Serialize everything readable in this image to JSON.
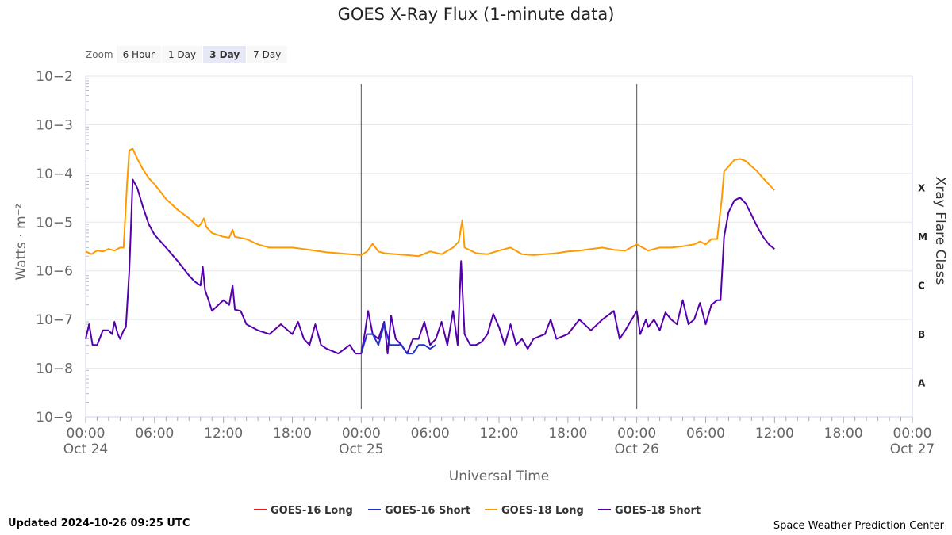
{
  "title": "GOES X-Ray Flux (1-minute data)",
  "zoom": {
    "label": "Zoom",
    "options": [
      "6 Hour",
      "1 Day",
      "3 Day",
      "7 Day"
    ],
    "selected": "3 Day"
  },
  "updated": "Updated 2024-10-26 09:25 UTC",
  "credit": "Space Weather Prediction Center",
  "colors": {
    "goes16_long": "#e41a1c",
    "goes16_short": "#2233cc",
    "goes18_long": "#ff9900",
    "goes18_short": "#5500aa"
  },
  "chart_data": {
    "type": "line",
    "title": "GOES X-Ray Flux (1-minute data)",
    "xlabel": "Universal Time",
    "ylabel": "Watts · m⁻²",
    "y2label": "Xray Flare Class",
    "yscale": "log",
    "ylim": [
      1e-09,
      0.01
    ],
    "xlim_hours": [
      0,
      72
    ],
    "xticks": [
      {
        "h": 0,
        "time": "00:00",
        "date": "Oct 24"
      },
      {
        "h": 6,
        "time": "06:00",
        "date": ""
      },
      {
        "h": 12,
        "time": "12:00",
        "date": ""
      },
      {
        "h": 18,
        "time": "18:00",
        "date": ""
      },
      {
        "h": 24,
        "time": "00:00",
        "date": "Oct 25"
      },
      {
        "h": 30,
        "time": "06:00",
        "date": ""
      },
      {
        "h": 36,
        "time": "12:00",
        "date": ""
      },
      {
        "h": 42,
        "time": "18:00",
        "date": ""
      },
      {
        "h": 48,
        "time": "00:00",
        "date": "Oct 26"
      },
      {
        "h": 54,
        "time": "06:00",
        "date": ""
      },
      {
        "h": 60,
        "time": "12:00",
        "date": ""
      },
      {
        "h": 66,
        "time": "18:00",
        "date": ""
      },
      {
        "h": 72,
        "time": "00:00",
        "date": "Oct 27"
      }
    ],
    "yticks": [
      {
        "exp": -2,
        "label": "10−2"
      },
      {
        "exp": -3,
        "label": "10−3"
      },
      {
        "exp": -4,
        "label": "10−4"
      },
      {
        "exp": -5,
        "label": "10−5"
      },
      {
        "exp": -6,
        "label": "10−6"
      },
      {
        "exp": -7,
        "label": "10−7"
      },
      {
        "exp": -8,
        "label": "10−8"
      },
      {
        "exp": -9,
        "label": "10−9"
      }
    ],
    "flare_classes": [
      {
        "label": "X",
        "exp": -4
      },
      {
        "label": "M",
        "exp": -5
      },
      {
        "label": "C",
        "exp": -6
      },
      {
        "label": "B",
        "exp": -7
      },
      {
        "label": "A",
        "exp": -8
      }
    ],
    "day_lines_hours": [
      24,
      48
    ],
    "legend": [
      "GOES-16 Long",
      "GOES-16 Short",
      "GOES-18 Long",
      "GOES-18 Short"
    ],
    "series": [
      {
        "name": "GOES-18 Long",
        "color": "#ff9900",
        "points": [
          [
            0,
            2.5e-06
          ],
          [
            0.5,
            2.2e-06
          ],
          [
            1,
            2.6e-06
          ],
          [
            1.5,
            2.5e-06
          ],
          [
            2,
            2.8e-06
          ],
          [
            2.5,
            2.6e-06
          ],
          [
            3,
            3e-06
          ],
          [
            3.3,
            3e-06
          ],
          [
            3.6,
            6e-05
          ],
          [
            3.8,
            0.0003
          ],
          [
            4.1,
            0.00032
          ],
          [
            4.5,
            0.0002
          ],
          [
            5,
            0.00012
          ],
          [
            5.5,
            8e-05
          ],
          [
            6,
            6e-05
          ],
          [
            7,
            3e-05
          ],
          [
            8,
            1.8e-05
          ],
          [
            9,
            1.2e-05
          ],
          [
            9.8,
            8e-06
          ],
          [
            10,
            9e-06
          ],
          [
            10.3,
            1.2e-05
          ],
          [
            10.5,
            8e-06
          ],
          [
            11,
            6e-06
          ],
          [
            12,
            5e-06
          ],
          [
            12.5,
            4.8e-06
          ],
          [
            12.8,
            7e-06
          ],
          [
            13,
            5e-06
          ],
          [
            14,
            4.5e-06
          ],
          [
            15,
            3.5e-06
          ],
          [
            16,
            3e-06
          ],
          [
            17,
            3e-06
          ],
          [
            18,
            3e-06
          ],
          [
            19,
            2.8e-06
          ],
          [
            20,
            2.6e-06
          ],
          [
            21,
            2.4e-06
          ],
          [
            22,
            2.3e-06
          ],
          [
            23,
            2.2e-06
          ],
          [
            24,
            2.1e-06
          ],
          [
            24.5,
            2.5e-06
          ],
          [
            25,
            3.6e-06
          ],
          [
            25.5,
            2.5e-06
          ],
          [
            26,
            2.3e-06
          ],
          [
            27,
            2.2e-06
          ],
          [
            28,
            2.1e-06
          ],
          [
            29,
            2e-06
          ],
          [
            30,
            2.5e-06
          ],
          [
            31,
            2.2e-06
          ],
          [
            32,
            3e-06
          ],
          [
            32.5,
            4e-06
          ],
          [
            32.8,
            1.1e-05
          ],
          [
            33,
            3e-06
          ],
          [
            34,
            2.3e-06
          ],
          [
            35,
            2.2e-06
          ],
          [
            36,
            2.6e-06
          ],
          [
            37,
            3e-06
          ],
          [
            38,
            2.2e-06
          ],
          [
            39,
            2.1e-06
          ],
          [
            40,
            2.2e-06
          ],
          [
            41,
            2.3e-06
          ],
          [
            42,
            2.5e-06
          ],
          [
            43,
            2.6e-06
          ],
          [
            44,
            2.8e-06
          ],
          [
            45,
            3e-06
          ],
          [
            46,
            2.7e-06
          ],
          [
            47,
            2.6e-06
          ],
          [
            48,
            3.5e-06
          ],
          [
            49,
            2.6e-06
          ],
          [
            50,
            3e-06
          ],
          [
            51,
            3e-06
          ],
          [
            52,
            3.2e-06
          ],
          [
            53,
            3.5e-06
          ],
          [
            53.5,
            4e-06
          ],
          [
            54,
            3.5e-06
          ],
          [
            54.5,
            4.5e-06
          ],
          [
            55,
            4.5e-06
          ],
          [
            55.4,
            3e-05
          ],
          [
            55.6,
            0.00011
          ],
          [
            56,
            0.00014
          ],
          [
            56.5,
            0.00019
          ],
          [
            57,
            0.0002
          ],
          [
            57.5,
            0.00018
          ],
          [
            58,
            0.00014
          ],
          [
            58.5,
            0.00011
          ],
          [
            59,
            8e-05
          ],
          [
            59.5,
            6e-05
          ],
          [
            60,
            4.5e-05
          ]
        ]
      },
      {
        "name": "GOES-18 Short",
        "color": "#5500aa",
        "points": [
          [
            0,
            4e-08
          ],
          [
            0.3,
            8e-08
          ],
          [
            0.6,
            3e-08
          ],
          [
            1,
            3e-08
          ],
          [
            1.5,
            6e-08
          ],
          [
            2,
            6e-08
          ],
          [
            2.3,
            5e-08
          ],
          [
            2.5,
            9e-08
          ],
          [
            2.8,
            5e-08
          ],
          [
            3,
            4e-08
          ],
          [
            3.3,
            6e-08
          ],
          [
            3.5,
            7e-08
          ],
          [
            3.8,
            1e-06
          ],
          [
            4.1,
            7.5e-05
          ],
          [
            4.5,
            5e-05
          ],
          [
            5,
            2e-05
          ],
          [
            5.5,
            9e-06
          ],
          [
            6,
            5.5e-06
          ],
          [
            7,
            3e-06
          ],
          [
            8,
            1.6e-06
          ],
          [
            9,
            8e-07
          ],
          [
            9.5,
            6e-07
          ],
          [
            10,
            5e-07
          ],
          [
            10.2,
            1.2e-06
          ],
          [
            10.4,
            4e-07
          ],
          [
            10.7,
            2.5e-07
          ],
          [
            11,
            1.5e-07
          ],
          [
            12,
            2.5e-07
          ],
          [
            12.5,
            2e-07
          ],
          [
            12.8,
            5e-07
          ],
          [
            13,
            1.6e-07
          ],
          [
            13.5,
            1.5e-07
          ],
          [
            14,
            8e-08
          ],
          [
            15,
            6e-08
          ],
          [
            16,
            5e-08
          ],
          [
            17,
            8e-08
          ],
          [
            18,
            5e-08
          ],
          [
            18.5,
            9e-08
          ],
          [
            19,
            4e-08
          ],
          [
            19.5,
            3e-08
          ],
          [
            20,
            8e-08
          ],
          [
            20.5,
            3e-08
          ],
          [
            21,
            2.5e-08
          ],
          [
            22,
            2e-08
          ],
          [
            23,
            3e-08
          ],
          [
            23.5,
            2e-08
          ],
          [
            24,
            2e-08
          ],
          [
            24.3,
            5e-08
          ],
          [
            24.6,
            1.5e-07
          ],
          [
            25,
            5e-08
          ],
          [
            25.5,
            4e-08
          ],
          [
            26,
            9e-08
          ],
          [
            26.3,
            2e-08
          ],
          [
            26.6,
            1.2e-07
          ],
          [
            27,
            4e-08
          ],
          [
            27.5,
            3e-08
          ],
          [
            28,
            2e-08
          ],
          [
            28.5,
            4e-08
          ],
          [
            29,
            4e-08
          ],
          [
            29.5,
            9e-08
          ],
          [
            30,
            3e-08
          ],
          [
            30.5,
            4e-08
          ],
          [
            31,
            9e-08
          ],
          [
            31.5,
            3e-08
          ],
          [
            32,
            1.5e-07
          ],
          [
            32.4,
            3e-08
          ],
          [
            32.7,
            1.6e-06
          ],
          [
            33,
            5e-08
          ],
          [
            33.5,
            3e-08
          ],
          [
            34,
            3e-08
          ],
          [
            34.5,
            3.5e-08
          ],
          [
            35,
            5e-08
          ],
          [
            35.5,
            1.3e-07
          ],
          [
            36,
            7e-08
          ],
          [
            36.5,
            3e-08
          ],
          [
            37,
            8e-08
          ],
          [
            37.5,
            3e-08
          ],
          [
            38,
            4e-08
          ],
          [
            38.5,
            2.5e-08
          ],
          [
            39,
            4e-08
          ],
          [
            40,
            5e-08
          ],
          [
            40.5,
            1e-07
          ],
          [
            41,
            4e-08
          ],
          [
            42,
            5e-08
          ],
          [
            43,
            1e-07
          ],
          [
            44,
            6e-08
          ],
          [
            45,
            1e-07
          ],
          [
            46,
            1.5e-07
          ],
          [
            46.5,
            4e-08
          ],
          [
            47,
            6e-08
          ],
          [
            48,
            1.5e-07
          ],
          [
            48.3,
            5e-08
          ],
          [
            48.8,
            1e-07
          ],
          [
            49,
            7e-08
          ],
          [
            49.5,
            1e-07
          ],
          [
            50,
            6e-08
          ],
          [
            50.5,
            1.4e-07
          ],
          [
            51,
            1e-07
          ],
          [
            51.5,
            8e-08
          ],
          [
            52,
            2.5e-07
          ],
          [
            52.5,
            8e-08
          ],
          [
            53,
            1e-07
          ],
          [
            53.5,
            2.2e-07
          ],
          [
            54,
            8e-08
          ],
          [
            54.5,
            2e-07
          ],
          [
            55,
            2.5e-07
          ],
          [
            55.3,
            2.5e-07
          ],
          [
            55.6,
            5e-06
          ],
          [
            56,
            1.6e-05
          ],
          [
            56.5,
            2.8e-05
          ],
          [
            57,
            3.2e-05
          ],
          [
            57.5,
            2.4e-05
          ],
          [
            58,
            1.4e-05
          ],
          [
            58.5,
            8e-06
          ],
          [
            59,
            5e-06
          ],
          [
            59.5,
            3.5e-06
          ],
          [
            60,
            2.8e-06
          ]
        ]
      },
      {
        "name": "GOES-16 Short",
        "color": "#2233cc",
        "points": [
          [
            24,
            2e-08
          ],
          [
            24.5,
            5e-08
          ],
          [
            25,
            5e-08
          ],
          [
            25.5,
            3e-08
          ],
          [
            26,
            8e-08
          ],
          [
            26.5,
            3e-08
          ],
          [
            27,
            3e-08
          ],
          [
            27.5,
            3e-08
          ],
          [
            28,
            2e-08
          ],
          [
            28.5,
            2e-08
          ],
          [
            29,
            3e-08
          ],
          [
            29.5,
            3e-08
          ],
          [
            30,
            2.5e-08
          ],
          [
            30.5,
            3e-08
          ]
        ]
      }
    ]
  }
}
